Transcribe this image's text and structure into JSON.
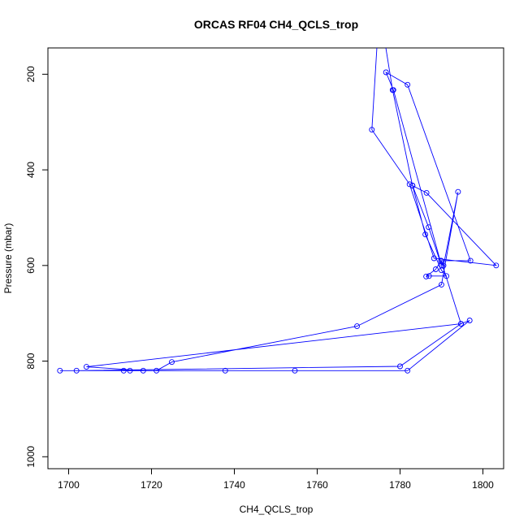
{
  "chart_data": {
    "type": "line",
    "title": "ORCAS RF04 CH4_QCLS_trop",
    "xlabel": "CH4_QCLS_trop",
    "ylabel": "Pressure (mbar)",
    "xlim": [
      1695,
      1805
    ],
    "ylim": [
      1025,
      145
    ],
    "y_reversed": true,
    "xticks": [
      1700,
      1720,
      1740,
      1760,
      1780,
      1800
    ],
    "yticks": [
      200,
      400,
      600,
      800,
      1000
    ],
    "grid": false,
    "series_color": "#0000ff",
    "series": [
      {
        "points": [
          [
            1775.0,
            60
          ],
          [
            1773.2,
            316
          ],
          [
            1782.3,
            430
          ],
          [
            1788.2,
            585
          ],
          [
            1803.2,
            600
          ],
          [
            1786.4,
            448
          ],
          [
            1783.0,
            433
          ],
          [
            1786.1,
            535
          ],
          [
            1790.0,
            610
          ],
          [
            1791.2,
            622
          ],
          [
            1787.0,
            622
          ],
          [
            1786.3,
            623
          ],
          [
            1788.6,
            608
          ],
          [
            1789.9,
            590
          ],
          [
            1790.5,
            600
          ],
          [
            1794.0,
            446
          ],
          [
            1790.0,
            640
          ],
          [
            1769.6,
            727
          ],
          [
            1724.9,
            802
          ],
          [
            1721.2,
            820
          ],
          [
            1718.0,
            820
          ],
          [
            1704.3,
            812
          ],
          [
            1794.7,
            722
          ],
          [
            1796.8,
            715
          ],
          [
            1781.8,
            820
          ],
          [
            1754.6,
            820
          ],
          [
            1737.8,
            820
          ],
          [
            1714.8,
            820
          ],
          [
            1713.3,
            820
          ],
          [
            1697.9,
            820
          ],
          [
            1701.9,
            820
          ],
          [
            1780.0,
            811
          ],
          [
            1794.7,
            722
          ],
          [
            1789.9,
            590
          ],
          [
            1797.0,
            590
          ],
          [
            1781.8,
            222
          ],
          [
            1776.6,
            196
          ],
          [
            1778.4,
            233
          ],
          [
            1790.0,
            600
          ],
          [
            1786.9,
            520
          ],
          [
            1783.0,
            433
          ],
          [
            1778.2,
            233
          ],
          [
            1775.0,
            60
          ]
        ]
      }
    ]
  }
}
